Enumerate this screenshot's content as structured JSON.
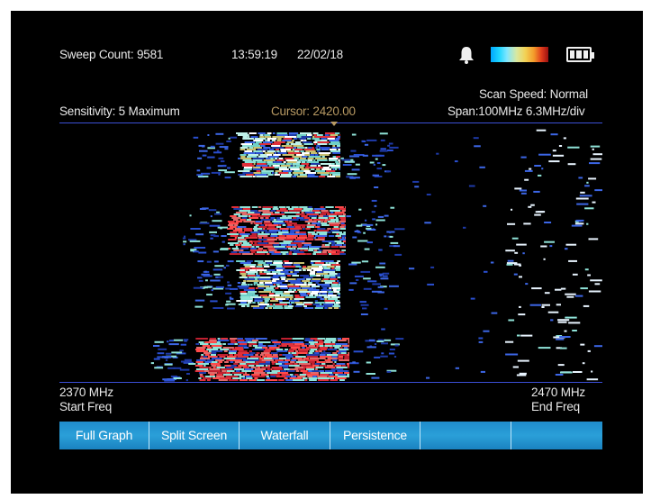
{
  "status": {
    "sweep_count": "Sweep Count: 9581",
    "time": "13:59:19",
    "date": "22/02/18",
    "icons": [
      "bell-icon",
      "color-scale-icon",
      "battery-icon"
    ]
  },
  "info": {
    "sensitivity": "Sensitivity: 5 Maximum",
    "cursor": "Cursor: 2420.00",
    "scan_speed": "Scan Speed: Normal",
    "span": "Span:100MHz 6.3MHz/div"
  },
  "axis": {
    "start_value": "2370  MHz",
    "start_label": "Start Freq",
    "end_value": "2470  MHz",
    "end_label": "End Freq"
  },
  "menu": {
    "tabs": [
      "Full Graph",
      "Split Screen",
      "Waterfall",
      "Persistence",
      "",
      ""
    ]
  },
  "colors": {
    "background": "#000000",
    "axis_line": "#3b4fd6",
    "menu_bar": "#2a9fd8",
    "cursor_text": "#b89a63",
    "signal_cyan": "#8fe3d8",
    "signal_red": "#e0303a",
    "signal_blue": "#2a4fd0"
  }
}
